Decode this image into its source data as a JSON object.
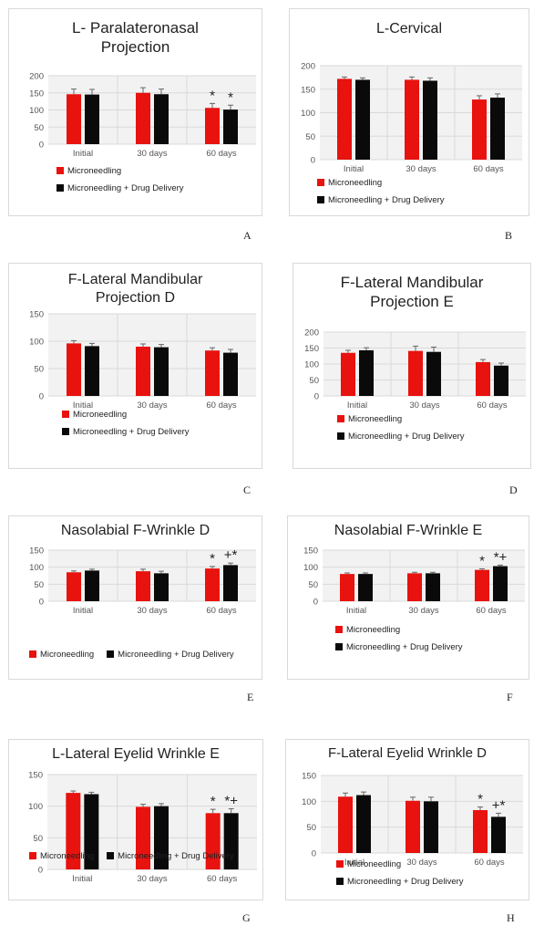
{
  "colors": {
    "microneedling": "#e8120e",
    "drug_delivery": "#0a0a0a",
    "plot_bg": "#f2f2f2",
    "grid": "#d9d9d9"
  },
  "legend_labels": {
    "microneedling": "Microneedling",
    "drug_delivery": "Microneedling + Drug Delivery"
  },
  "chart_data": [
    {
      "type": "bar",
      "letter": "A",
      "title_lines": [
        "L- Paralateronasal",
        "Projection"
      ],
      "categories": [
        "Initial",
        "30 days",
        "60 days"
      ],
      "ylim": [
        0,
        200
      ],
      "yticks": [
        0,
        50,
        100,
        150,
        200
      ],
      "series": [
        {
          "name": "Microneedling",
          "values": [
            146,
            150,
            106
          ],
          "errors": [
            15,
            15,
            13
          ]
        },
        {
          "name": "Microneedling + Drug Delivery",
          "values": [
            145,
            146,
            101
          ],
          "errors": [
            15,
            15,
            13
          ]
        }
      ],
      "annotations": [
        {
          "category": 2,
          "series": 0,
          "text": "*"
        },
        {
          "category": 2,
          "series": 1,
          "text": "*"
        }
      ],
      "legend": "bottom-left"
    },
    {
      "type": "bar",
      "letter": "B",
      "title_lines": [
        "L-Cervical"
      ],
      "categories": [
        "Initial",
        "30 days",
        "60 days"
      ],
      "ylim": [
        0,
        200
      ],
      "yticks": [
        0,
        50,
        100,
        150,
        200
      ],
      "series": [
        {
          "name": "Microneedling",
          "values": [
            172,
            170,
            128
          ],
          "errors": [
            4,
            6,
            8
          ]
        },
        {
          "name": "Microneedling + Drug Delivery",
          "values": [
            170,
            168,
            132
          ],
          "errors": [
            4,
            6,
            8
          ]
        }
      ],
      "annotations": [],
      "legend": "bottom-left"
    },
    {
      "type": "bar",
      "letter": "C",
      "title_lines": [
        "F-Lateral Mandibular",
        "Projection D"
      ],
      "categories": [
        "Initial",
        "30 days",
        "60 days"
      ],
      "ylim": [
        0,
        150
      ],
      "yticks": [
        0,
        50,
        100,
        150
      ],
      "series": [
        {
          "name": "Microneedling",
          "values": [
            96,
            90,
            83
          ],
          "errors": [
            5,
            5,
            5
          ]
        },
        {
          "name": "Microneedling + Drug Delivery",
          "values": [
            91,
            89,
            79
          ],
          "errors": [
            5,
            5,
            6
          ]
        }
      ],
      "annotations": [],
      "legend": "bottom-left"
    },
    {
      "type": "bar",
      "letter": "D",
      "title_lines": [
        "F-Lateral Mandibular",
        "Projection E"
      ],
      "categories": [
        "Initial",
        "30 days",
        "60 days"
      ],
      "ylim": [
        0,
        200
      ],
      "yticks": [
        0,
        50,
        100,
        150,
        200
      ],
      "series": [
        {
          "name": "Microneedling",
          "values": [
            135,
            141,
            106
          ],
          "errors": [
            8,
            15,
            8
          ]
        },
        {
          "name": "Microneedling + Drug Delivery",
          "values": [
            143,
            138,
            95
          ],
          "errors": [
            8,
            15,
            8
          ]
        }
      ],
      "annotations": [],
      "legend": "bottom-left"
    },
    {
      "type": "bar",
      "letter": "E",
      "title_lines": [
        "Nasolabial F-Wrinkle D"
      ],
      "categories": [
        "Initial",
        "30 days",
        "60 days"
      ],
      "ylim": [
        0,
        150
      ],
      "yticks": [
        0,
        50,
        100,
        150
      ],
      "series": [
        {
          "name": "Microneedling",
          "values": [
            85,
            88,
            96
          ],
          "errors": [
            4,
            6,
            6
          ]
        },
        {
          "name": "Microneedling + Drug Delivery",
          "values": [
            90,
            82,
            106
          ],
          "errors": [
            4,
            6,
            6
          ]
        }
      ],
      "annotations": [
        {
          "category": 2,
          "series": 0,
          "text": "*"
        },
        {
          "category": 2,
          "series": 1,
          "text": "+*"
        }
      ],
      "legend": "bottom-inline"
    },
    {
      "type": "bar",
      "letter": "F",
      "title_lines": [
        "Nasolabial F-Wrinkle E"
      ],
      "categories": [
        "Initial",
        "30 days",
        "60 days"
      ],
      "ylim": [
        0,
        150
      ],
      "yticks": [
        0,
        50,
        100,
        150
      ],
      "series": [
        {
          "name": "Microneedling",
          "values": [
            80,
            82,
            92
          ],
          "errors": [
            3,
            3,
            3
          ]
        },
        {
          "name": "Microneedling + Drug Delivery",
          "values": [
            80,
            82,
            103
          ],
          "errors": [
            3,
            3,
            3
          ]
        }
      ],
      "annotations": [
        {
          "category": 2,
          "series": 0,
          "text": "*"
        },
        {
          "category": 2,
          "series": 1,
          "text": "*+"
        }
      ],
      "legend": "bottom-left"
    },
    {
      "type": "bar",
      "letter": "G",
      "title_lines": [
        "L-Lateral Eyelid Wrinkle E"
      ],
      "categories": [
        "Initial",
        "30 days",
        "60 days"
      ],
      "ylim": [
        0,
        150
      ],
      "yticks": [
        0,
        50,
        100,
        150
      ],
      "series": [
        {
          "name": "Microneedling",
          "values": [
            121,
            99,
            89
          ],
          "errors": [
            3,
            4,
            6
          ]
        },
        {
          "name": "Microneedling + Drug Delivery",
          "values": [
            119,
            100,
            89
          ],
          "errors": [
            3,
            4,
            7
          ]
        }
      ],
      "annotations": [
        {
          "category": 2,
          "series": 0,
          "text": "*"
        },
        {
          "category": 2,
          "series": 1,
          "text": "*+"
        }
      ],
      "legend": "bottom-inline"
    },
    {
      "type": "bar",
      "letter": "H",
      "title_lines": [
        "F-Lateral Eyelid Wrinkle D"
      ],
      "categories": [
        "Initial",
        "30 days",
        "60 days"
      ],
      "ylim": [
        0,
        150
      ],
      "yticks": [
        0,
        50,
        100,
        150
      ],
      "series": [
        {
          "name": "Microneedling",
          "values": [
            109,
            101,
            83
          ],
          "errors": [
            7,
            7,
            6
          ]
        },
        {
          "name": "Microneedling + Drug Delivery",
          "values": [
            112,
            100,
            70
          ],
          "errors": [
            6,
            8,
            7
          ]
        }
      ],
      "annotations": [
        {
          "category": 2,
          "series": 0,
          "text": "*"
        },
        {
          "category": 2,
          "series": 1,
          "text": "+*"
        }
      ],
      "legend": "bottom-left"
    }
  ]
}
